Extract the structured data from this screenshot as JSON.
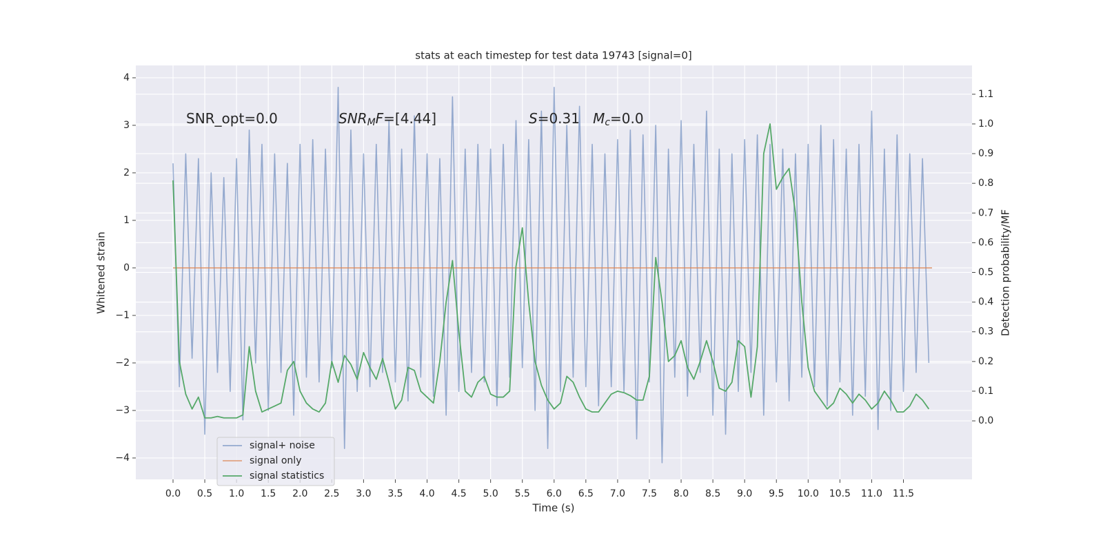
{
  "chart_data": {
    "type": "line",
    "title": "stats at each timestep for test data 19743 [signal=0]",
    "xlabel": "Time (s)",
    "ylabel": "Whitened strain",
    "y2label": "Detection probability/MF",
    "xlim": [
      -0.586,
      12.58
    ],
    "ylim": [
      -4.45,
      4.26
    ],
    "y2lim": [
      -0.197,
      1.197
    ],
    "xticks": [
      {
        "value": 0,
        "label": "0.0"
      },
      0.5,
      {
        "value": 1,
        "label": "1.0"
      },
      1.5,
      {
        "value": 2,
        "label": "2.0"
      },
      2.5,
      {
        "value": 3,
        "label": "3.0"
      },
      3.5,
      {
        "value": 4,
        "label": "4.0"
      },
      4.5,
      {
        "value": 5,
        "label": "5.0"
      },
      5.5,
      {
        "value": 6,
        "label": "6.0"
      },
      6.5,
      {
        "value": 7,
        "label": "7.0"
      },
      7.5,
      {
        "value": 8,
        "label": "8.0"
      },
      8.5,
      {
        "value": 9,
        "label": "9.0"
      },
      9.5,
      {
        "value": 10,
        "label": "10.0"
      },
      10.5,
      {
        "value": 11,
        "label": "11.0"
      },
      11.5
    ],
    "yticks": [
      {
        "value": -4,
        "label": "−4"
      },
      {
        "value": -3,
        "label": "−3"
      },
      {
        "value": -2,
        "label": "−2"
      },
      {
        "value": -1,
        "label": "−1"
      },
      0,
      1,
      2,
      3,
      4
    ],
    "y2ticks": [
      {
        "value": 0,
        "label": "0.0"
      },
      0.1,
      0.2,
      0.3,
      0.4,
      0.5,
      0.6,
      0.7,
      0.8,
      0.9,
      {
        "value": 1,
        "label": "1.0"
      },
      1.1
    ],
    "grid": true,
    "legend_loc": "lower left",
    "x": [
      0,
      0.1,
      0.2,
      0.3,
      0.4,
      0.5,
      0.6,
      0.7,
      0.8,
      0.9,
      1,
      1.1,
      1.2,
      1.3,
      1.4,
      1.5,
      1.6,
      1.7,
      1.8,
      1.9,
      2,
      2.1,
      2.2,
      2.3,
      2.4,
      2.5,
      2.6,
      2.7,
      2.8,
      2.9,
      3,
      3.1,
      3.2,
      3.3,
      3.4,
      3.5,
      3.6,
      3.7,
      3.8,
      3.9,
      4,
      4.1,
      4.2,
      4.3,
      4.4,
      4.5,
      4.6,
      4.7,
      4.8,
      4.9,
      5,
      5.1,
      5.2,
      5.3,
      5.4,
      5.5,
      5.6,
      5.7,
      5.8,
      5.9,
      6,
      6.1,
      6.2,
      6.3,
      6.4,
      6.5,
      6.6,
      6.7,
      6.8,
      6.9,
      7,
      7.1,
      7.2,
      7.3,
      7.4,
      7.5,
      7.6,
      7.7,
      7.8,
      7.9,
      8,
      8.1,
      8.2,
      8.3,
      8.4,
      8.5,
      8.6,
      8.7,
      8.8,
      8.9,
      9,
      9.1,
      9.2,
      9.3,
      9.4,
      9.5,
      9.6,
      9.7,
      9.8,
      9.9,
      10,
      10.1,
      10.2,
      10.3,
      10.4,
      10.5,
      10.6,
      10.7,
      10.8,
      10.9,
      11,
      11.1,
      11.2,
      11.3,
      11.4,
      11.5,
      11.6,
      11.7,
      11.8,
      11.9
    ],
    "series": [
      {
        "name": "signal+ noise",
        "color": "#4c72b0",
        "opacity": 0.55,
        "values": [
          2.2,
          -2.5,
          2.4,
          -1.9,
          2.3,
          -3.5,
          2.0,
          -2.2,
          1.9,
          -2.6,
          2.3,
          -3.2,
          2.9,
          -2.0,
          2.6,
          -3.0,
          2.4,
          -2.2,
          2.2,
          -3.1,
          2.6,
          -2.3,
          2.7,
          -2.4,
          2.5,
          -2.1,
          3.8,
          -3.8,
          2.9,
          -2.6,
          2.4,
          -2.5,
          2.6,
          -2.2,
          3.1,
          -2.4,
          2.5,
          -2.8,
          3.2,
          -2.3,
          2.4,
          -2.7,
          2.3,
          -3.1,
          3.6,
          -2.6,
          2.5,
          -2.2,
          2.6,
          -2.4,
          2.5,
          -2.9,
          2.6,
          -2.3,
          3.1,
          -2.1,
          2.7,
          -3.0,
          3.3,
          -3.8,
          3.8,
          -2.6,
          3.0,
          -2.3,
          3.4,
          -2.5,
          2.6,
          -2.9,
          2.4,
          -2.5,
          2.7,
          -2.6,
          2.9,
          -3.6,
          2.8,
          -2.4,
          3.0,
          -4.1,
          2.5,
          -2.3,
          3.1,
          -2.7,
          2.6,
          -2.2,
          3.3,
          -3.1,
          2.5,
          -3.5,
          2.4,
          -2.6,
          2.7,
          -2.2,
          2.8,
          -3.1,
          2.6,
          -2.4,
          2.5,
          -2.8,
          2.4,
          -2.3,
          2.6,
          -2.5,
          3.0,
          -2.9,
          2.7,
          -2.4,
          2.5,
          -3.1,
          2.6,
          -2.7,
          3.3,
          -3.4,
          2.5,
          -3.0,
          2.8,
          -2.6,
          2.4,
          -2.2,
          2.3,
          -2.0
        ]
      },
      {
        "name": "signal only",
        "color": "#dd8452",
        "opacity": 0.7,
        "x": [
          0,
          11.95
        ],
        "values": [
          0,
          0
        ]
      },
      {
        "name": "signal statistics",
        "color": "#55a868",
        "opacity": 1,
        "axis": "y2",
        "values": [
          0.81,
          0.2,
          0.09,
          0.04,
          0.08,
          0.01,
          0.01,
          0.015,
          0.01,
          0.01,
          0.01,
          0.02,
          0.25,
          0.1,
          0.03,
          0.04,
          0.05,
          0.06,
          0.17,
          0.2,
          0.1,
          0.06,
          0.04,
          0.03,
          0.06,
          0.2,
          0.13,
          0.22,
          0.19,
          0.14,
          0.23,
          0.18,
          0.14,
          0.21,
          0.13,
          0.04,
          0.07,
          0.18,
          0.17,
          0.1,
          0.08,
          0.06,
          0.2,
          0.4,
          0.54,
          0.3,
          0.1,
          0.08,
          0.13,
          0.15,
          0.09,
          0.08,
          0.08,
          0.1,
          0.52,
          0.65,
          0.4,
          0.2,
          0.12,
          0.07,
          0.04,
          0.06,
          0.15,
          0.13,
          0.08,
          0.04,
          0.03,
          0.03,
          0.06,
          0.09,
          0.1,
          0.095,
          0.085,
          0.07,
          0.07,
          0.15,
          0.55,
          0.4,
          0.2,
          0.22,
          0.27,
          0.18,
          0.14,
          0.2,
          0.27,
          0.2,
          0.11,
          0.1,
          0.13,
          0.27,
          0.25,
          0.08,
          0.25,
          0.9,
          1.0,
          0.78,
          0.82,
          0.85,
          0.7,
          0.4,
          0.18,
          0.1,
          0.07,
          0.04,
          0.06,
          0.11,
          0.09,
          0.06,
          0.09,
          0.07,
          0.04,
          0.06,
          0.1,
          0.07,
          0.03,
          0.03,
          0.05,
          0.09,
          0.07,
          0.04
        ]
      }
    ],
    "annotations": [
      [
        {
          "text": "SNR_opt=0.0"
        }
      ],
      [
        {
          "text": "SNR",
          "italic": true
        },
        {
          "text": "M",
          "italic": true,
          "sub": true
        },
        {
          "text": "F",
          "italic": true
        },
        {
          "text": "=[4.44]"
        }
      ],
      [
        {
          "text": "S",
          "italic": true
        },
        {
          "text": "=0.31   "
        },
        {
          "text": "M",
          "italic": true
        },
        {
          "text": "c",
          "italic": true,
          "sub": true
        },
        {
          "text": "=0.0"
        }
      ]
    ]
  }
}
